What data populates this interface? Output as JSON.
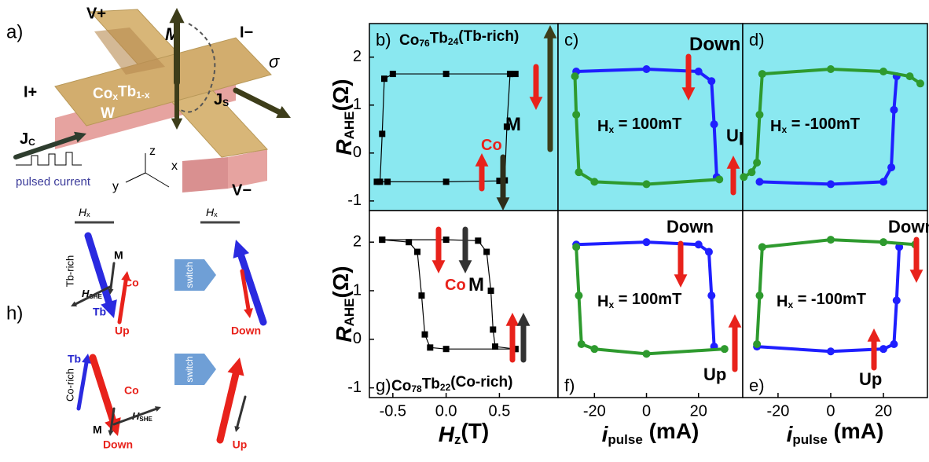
{
  "chart_data": [
    {
      "type": "line",
      "panel_label": "b)",
      "title_parts": [
        "Co",
        "76",
        "Tb",
        "24",
        "(Tb-rich)"
      ],
      "background": "#8ae8f0",
      "marker": "square",
      "ylabel_parts": [
        "R",
        "AHE",
        "(Ω)"
      ],
      "ylim": [
        -1.2,
        2.7
      ],
      "yticks": [
        -1,
        0,
        1,
        2
      ],
      "xlim": [
        -0.72,
        1.05
      ],
      "series": [
        {
          "color": "#000000",
          "x": [
            -0.65,
            -0.55,
            0,
            0.5,
            0.55,
            0.57,
            0.6
          ],
          "values": [
            -0.6,
            -0.6,
            -0.6,
            -0.58,
            -0.57,
            0.55,
            1.65
          ]
        },
        {
          "color": "#000000",
          "x": [
            0.65,
            0.6,
            0,
            -0.5,
            -0.58,
            -0.6,
            -0.62
          ],
          "values": [
            1.65,
            1.65,
            1.65,
            1.65,
            1.55,
            0.4,
            -0.6
          ]
        }
      ],
      "annotations": [
        {
          "parts": [
            "M"
          ],
          "color": "#000000"
        },
        {
          "parts": [
            "Co"
          ],
          "color": "#e8221b"
        }
      ]
    },
    {
      "type": "line",
      "panel_label": "c)",
      "background": "#8ae8f0",
      "marker": "circle",
      "ylim": [
        -1.2,
        2.7
      ],
      "xlim": [
        -34,
        37
      ],
      "series": [
        {
          "color": "#1f1fff",
          "x": [
            -27,
            0,
            20,
            25,
            26,
            27
          ],
          "values": [
            1.7,
            1.75,
            1.7,
            1.5,
            0.6,
            -0.5
          ]
        },
        {
          "color": "#2e9a2e",
          "x": [
            28,
            0,
            -20,
            -26,
            -27,
            -27.5
          ],
          "values": [
            -0.55,
            -0.65,
            -0.6,
            -0.4,
            0.8,
            1.6
          ]
        }
      ],
      "annotations": [
        {
          "parts": [
            "Down"
          ],
          "color": "#000000"
        },
        {
          "parts": [
            "Up"
          ],
          "color": "#000000"
        },
        {
          "parts": [
            "H",
            "x",
            " = 100mT"
          ],
          "color": "#000000"
        }
      ]
    },
    {
      "type": "line",
      "panel_label": "d)",
      "background": "#8ae8f0",
      "marker": "circle",
      "ylim": [
        -1.2,
        2.7
      ],
      "xlim": [
        -33.4,
        36.7
      ],
      "series": [
        {
          "color": "#1f1fff",
          "x": [
            -27,
            0,
            20,
            23,
            24,
            25
          ],
          "values": [
            -0.6,
            -0.65,
            -0.6,
            -0.3,
            0.9,
            1.6
          ]
        },
        {
          "color": "#2e9a2e",
          "x": [
            -33,
            -30,
            -28,
            -27,
            -26,
            0,
            20,
            30,
            34
          ],
          "values": [
            -0.5,
            -0.4,
            -0.2,
            0.8,
            1.65,
            1.75,
            1.7,
            1.6,
            1.45
          ]
        }
      ],
      "annotations": [
        {
          "parts": [
            "H",
            "x",
            " = -100mT"
          ],
          "color": "#000000"
        }
      ]
    },
    {
      "type": "line",
      "panel_label": "g)",
      "title_parts": [
        "Co",
        "78",
        "Tb",
        "22",
        "(Co-rich)"
      ],
      "background": "#ffffff",
      "marker": "square",
      "ylabel_parts": [
        "R",
        "AHE",
        "(Ω)"
      ],
      "xlabel_parts": [
        "H",
        "z",
        "(T)"
      ],
      "ylim": [
        -1.2,
        2.65
      ],
      "yticks": [
        -1,
        0,
        1,
        2
      ],
      "xlim": [
        -0.72,
        1.05
      ],
      "xticks": [
        -0.5,
        {
          "value": 0,
          "label": "0.0"
        },
        0.5
      ],
      "series": [
        {
          "color": "#000000",
          "x": [
            -0.6,
            0,
            0.3,
            0.38,
            0.42,
            0.44,
            0.46,
            0.65
          ],
          "values": [
            2.05,
            2.05,
            2.03,
            1.8,
            1.0,
            0.2,
            -0.15,
            -0.2
          ]
        },
        {
          "color": "#000000",
          "x": [
            0.65,
            0,
            -0.15,
            -0.2,
            -0.23,
            -0.27,
            -0.35,
            -0.6
          ],
          "values": [
            -0.2,
            -0.2,
            -0.17,
            0.1,
            0.9,
            1.8,
            2.0,
            2.05
          ]
        }
      ],
      "annotations": [
        {
          "parts": [
            "Co"
          ],
          "color": "#e8221b"
        },
        {
          "parts": [
            "M"
          ],
          "color": "#000000"
        }
      ]
    },
    {
      "type": "line",
      "panel_label": "f)",
      "background": "#ffffff",
      "marker": "circle",
      "xlabel_parts": [
        "i",
        "pulse",
        " (mA)"
      ],
      "ylim": [
        -1.2,
        2.65
      ],
      "xlim": [
        -34,
        37
      ],
      "xticks": [
        -20,
        0,
        20
      ],
      "series": [
        {
          "color": "#1f1fff",
          "x": [
            -27,
            0,
            20,
            24,
            25,
            26
          ],
          "values": [
            1.95,
            2.0,
            1.95,
            1.8,
            0.9,
            -0.15
          ]
        },
        {
          "color": "#2e9a2e",
          "x": [
            30,
            0,
            -20,
            -25,
            -26,
            -27
          ],
          "values": [
            -0.2,
            -0.3,
            -0.2,
            -0.1,
            0.9,
            1.9
          ]
        }
      ],
      "annotations": [
        {
          "parts": [
            "Down"
          ],
          "color": "#000000"
        },
        {
          "parts": [
            "H",
            "x",
            " = 100mT"
          ],
          "color": "#000000"
        },
        {
          "parts": [
            "Up"
          ],
          "color": "#000000"
        }
      ]
    },
    {
      "type": "line",
      "panel_label": "e)",
      "background": "#ffffff",
      "marker": "circle",
      "xlabel_parts": [
        "i",
        "pulse",
        " (mA)"
      ],
      "ylim": [
        -1.2,
        2.65
      ],
      "xlim": [
        -33.4,
        36.7
      ],
      "xticks": [
        -20,
        0,
        20
      ],
      "series": [
        {
          "color": "#1f1fff",
          "x": [
            -28,
            0,
            20,
            24,
            25,
            26
          ],
          "values": [
            -0.15,
            -0.25,
            -0.2,
            -0.1,
            0.8,
            1.9
          ]
        },
        {
          "color": "#2e9a2e",
          "x": [
            -28,
            -27,
            -26,
            0,
            20,
            32
          ],
          "values": [
            -0.1,
            0.9,
            1.9,
            2.05,
            2.0,
            1.95
          ]
        }
      ],
      "annotations": [
        {
          "parts": [
            "Down"
          ],
          "color": "#000000"
        },
        {
          "parts": [
            "H",
            "x",
            " = -100mT"
          ],
          "color": "#000000"
        },
        {
          "parts": [
            "Up"
          ],
          "color": "#000000"
        }
      ]
    }
  ],
  "diagram": {
    "a": {
      "label": "a)",
      "v_plus": "V+",
      "m": "M",
      "i_minus": "I−",
      "sigma": "σ",
      "i_plus": "I+",
      "js": [
        "J",
        "S"
      ],
      "jc": [
        "J",
        "C"
      ],
      "material": [
        "Co",
        "x",
        "Tb",
        "1-x"
      ],
      "w": "W",
      "pulsed": "pulsed current",
      "z": "z",
      "y": "y",
      "x": "x",
      "v_minus": "V−"
    },
    "h": {
      "label": "h)",
      "hx_1": [
        "H",
        "x"
      ],
      "hx_2": [
        "H",
        "x"
      ],
      "tb_rich": {
        "group": "Tb-rich",
        "m": "M",
        "co": "Co",
        "hshe": [
          "H",
          "SHE"
        ],
        "tb": "Tb",
        "up": "Up",
        "switch": "switch",
        "down": "Down"
      },
      "co_rich": {
        "group": "Co-rich",
        "tb": "Tb",
        "co": "Co",
        "hshe": [
          "H",
          "SHE"
        ],
        "m": "M",
        "down": "Down",
        "switch": "switch",
        "up": "Up"
      }
    }
  }
}
